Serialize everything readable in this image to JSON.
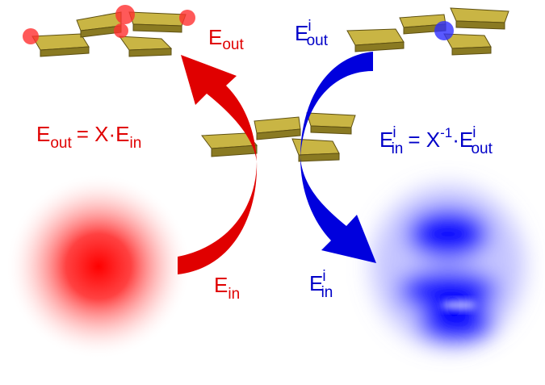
{
  "labels": {
    "e_out": {
      "base": "E",
      "sub": "out"
    },
    "e_i_out": {
      "base": "E",
      "sup": "i",
      "sub": "out"
    },
    "e_in": {
      "base": "E",
      "sub": "in"
    },
    "e_i_in": {
      "base": "E",
      "sup": "i",
      "sub": "in"
    }
  },
  "equations": {
    "forward": {
      "lhs": "E",
      "lhs_sub": "out",
      "rhs": "= X·E",
      "rhs_sub": "in"
    },
    "inverse": {
      "lhs": "E",
      "lhs_sup": "i",
      "lhs_sub": "in",
      "op": "= X",
      "op_sup": "-1",
      "rhs": "·E",
      "rhs_sup": "i",
      "rhs_sub": "out"
    }
  }
}
